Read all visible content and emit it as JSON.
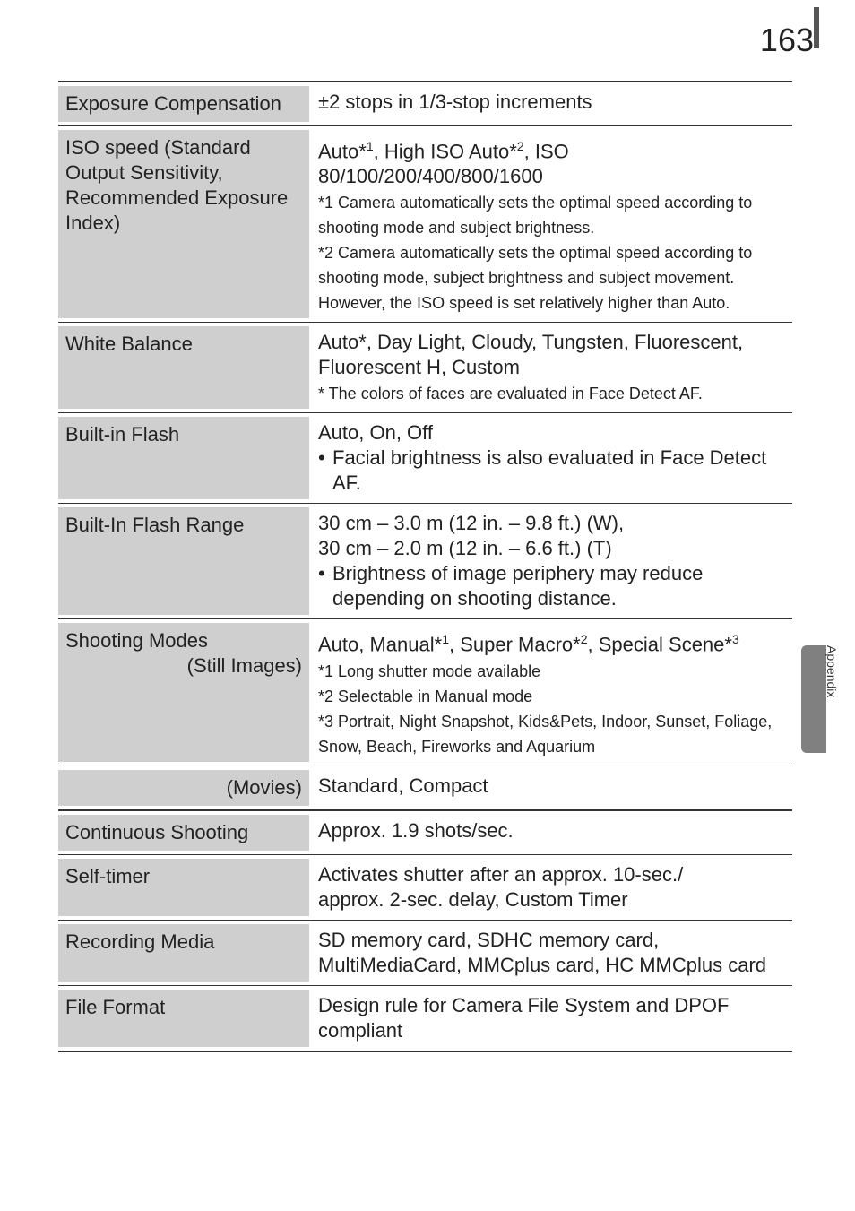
{
  "page": {
    "number": "163",
    "side_label": "Appendix"
  },
  "rows": [
    {
      "left": "Exposure Compensation",
      "right_html": "±2 stops in 1/3-stop increments",
      "break": false
    },
    {
      "left": "ISO speed (Standard Output Sensitivity, Recommended Exposure Index)",
      "right_html": "Auto*<sup>1</sup>, High ISO Auto*<sup>2</sup>, ISO 80/100/200/400/800/1600<br><span class='note'>*1 Camera automatically sets the optimal speed according to shooting mode and subject brightness.<br>*2 Camera automatically sets the optimal speed according to shooting mode, subject brightness and subject movement. However, the ISO speed is set relatively higher than Auto.</span>",
      "break": false
    },
    {
      "left": "White Balance",
      "right_html": "Auto*, Day Light, Cloudy, Tungsten, Fluorescent, Fluorescent H, Custom<br><span class='note'>* The colors of faces are evaluated in Face Detect AF.</span>",
      "break": false
    },
    {
      "left": "Built-in Flash",
      "right_html": "Auto, On, Off<ul><li>Facial brightness is also evaluated in Face Detect AF.</li></ul>",
      "break": false
    },
    {
      "left": "Built-In Flash Range",
      "right_html": "30 cm – 3.0 m (12 in. – 9.8 ft.) (W),<br>30 cm – 2.0 m (12 in. – 6.6 ft.) (T)<ul><li>Brightness of image periphery may reduce depending on shooting distance.</li></ul>",
      "break": false
    },
    {
      "left": "Shooting Modes<br><span style='float:right'>(Still Images)</span>",
      "right_html": "Auto, Manual*<sup>1</sup>, Super Macro*<sup>2</sup>, Special Scene*<sup>3</sup><br><span class='note'>*1 Long shutter mode available<br>*2 Selectable in Manual mode<br>*3 Portrait, Night Snapshot, Kids&amp;Pets, Indoor, Sunset, Foliage, Snow, Beach, Fireworks and Aquarium</span>",
      "break": false
    },
    {
      "left": "<span style='float:right'>(Movies)</span>",
      "right_html": "Standard, Compact",
      "break": true
    },
    {
      "left": "Continuous Shooting",
      "right_html": "Approx. 1.9 shots/sec.",
      "break": false
    },
    {
      "left": "Self-timer",
      "right_html": "Activates shutter after an approx. 10-sec./<br>approx. 2-sec. delay, Custom Timer",
      "break": false
    },
    {
      "left": "Recording Media",
      "right_html": "SD memory card, SDHC memory card, MultiMediaCard, MMCplus card, HC MMCplus card",
      "break": false
    },
    {
      "left": "File Format",
      "right_html": "Design rule for Camera File System and DPOF compliant",
      "break": true
    }
  ]
}
